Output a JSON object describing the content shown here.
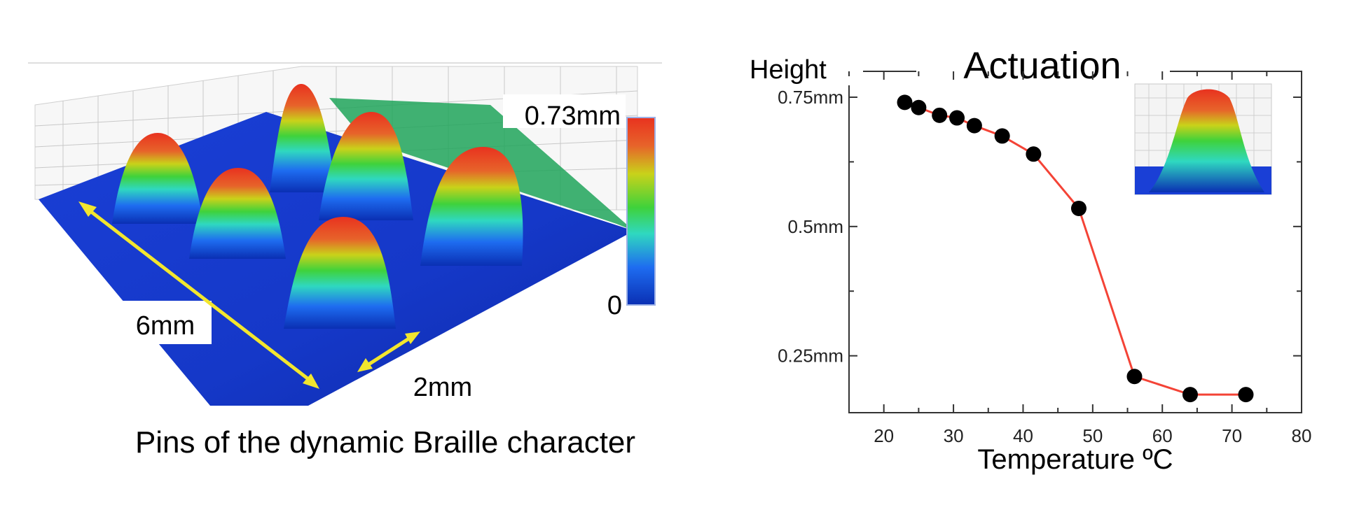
{
  "left_figure": {
    "caption": "Pins of the dynamic Braille character",
    "colorbar": {
      "max_label": "0.73mm",
      "min_label": "0",
      "colors": [
        "#0a2fb3",
        "#1e6cf0",
        "#2fd8c0",
        "#3fd23b",
        "#c9d21a",
        "#e7632a",
        "#e8321f"
      ]
    },
    "dimension_labels": {
      "length_label": "6mm",
      "width_label": "2mm"
    },
    "arrow_color": "#f2e62e"
  },
  "chart_data": {
    "type": "line",
    "title": "Actuation",
    "xlabel": "Temperature ºC",
    "ylabel": "Height",
    "xlim": [
      15,
      80
    ],
    "ylim": [
      0.14,
      0.8
    ],
    "x_ticks": [
      20,
      30,
      40,
      50,
      60,
      70,
      80
    ],
    "y_ticks": [
      {
        "value": 0.25,
        "label": "0.25mm"
      },
      {
        "value": 0.5,
        "label": "0.5mm"
      },
      {
        "value": 0.75,
        "label": "0.75mm"
      }
    ],
    "series": [
      {
        "x": [
          23,
          25,
          28,
          30.5,
          33,
          37,
          41.5,
          48,
          56,
          64,
          72
        ],
        "y": [
          0.74,
          0.73,
          0.715,
          0.71,
          0.695,
          0.675,
          0.64,
          0.535,
          0.21,
          0.175,
          0.175
        ],
        "line_color": "#f44336",
        "marker_color": "#000000"
      }
    ],
    "grid": false,
    "inset": "3d pin surface plot"
  }
}
